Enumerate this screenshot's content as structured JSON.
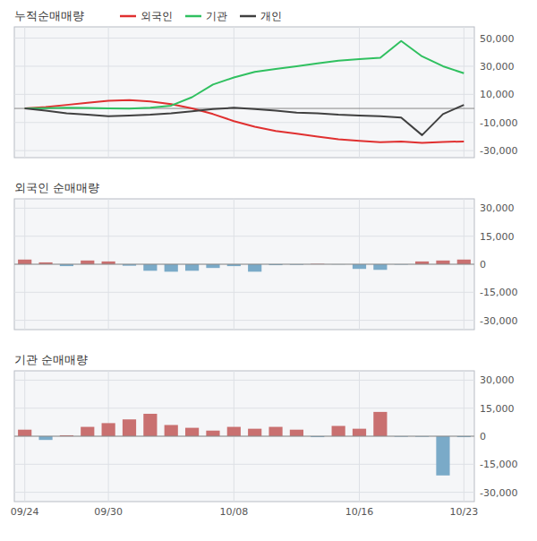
{
  "chart_data": [
    {
      "type": "line",
      "title": "누적순매매량",
      "categories": [
        "09/24",
        null,
        null,
        null,
        "09/30",
        null,
        null,
        null,
        null,
        null,
        "10/08",
        null,
        null,
        null,
        null,
        null,
        "10/16",
        null,
        null,
        null,
        null,
        "10/23"
      ],
      "series": [
        {
          "name": "외국인",
          "color": "#e03030",
          "values": [
            0,
            1000,
            2500,
            4000,
            5500,
            6000,
            5000,
            3000,
            0,
            -4000,
            -9000,
            -13000,
            -16000,
            -18000,
            -20000,
            -22000,
            -23000,
            -24000,
            -23500,
            -24500,
            -23800,
            -23500
          ]
        },
        {
          "name": "기관",
          "color": "#30c060",
          "values": [
            0,
            200,
            500,
            300,
            100,
            -200,
            500,
            2000,
            8000,
            17000,
            22000,
            26000,
            28000,
            30000,
            32000,
            34000,
            35000,
            36000,
            48000,
            37000,
            30000,
            25000
          ]
        },
        {
          "name": "개인",
          "color": "#404040",
          "values": [
            0,
            -1500,
            -3500,
            -4500,
            -5500,
            -5000,
            -4500,
            -3500,
            -2000,
            -500,
            500,
            -500,
            -1500,
            -3000,
            -3500,
            -4500,
            -5000,
            -5500,
            -6500,
            -19000,
            -4000,
            2500
          ]
        }
      ],
      "ylim": [
        -35000,
        58000
      ],
      "yticks": [
        {
          "value": -30000,
          "label": "-30,000"
        },
        {
          "value": -10000,
          "label": "-10,000"
        },
        {
          "value": 10000,
          "label": "10,000"
        },
        {
          "value": 30000,
          "label": "30,000"
        },
        {
          "value": 50000,
          "label": "50,000"
        }
      ],
      "grid": true,
      "legend": "top",
      "tick_labels": "y"
    },
    {
      "type": "bar",
      "title": "외국인 순매매량",
      "categories": [
        "09/24",
        null,
        null,
        null,
        "09/30",
        null,
        null,
        null,
        null,
        null,
        "10/08",
        null,
        null,
        null,
        null,
        null,
        "10/16",
        null,
        null,
        null,
        null,
        "10/23"
      ],
      "values": [
        2500,
        1000,
        -1000,
        2000,
        1500,
        -800,
        -3500,
        -4000,
        -3500,
        -2000,
        -1000,
        -4000,
        -500,
        -300,
        200,
        -100,
        -2500,
        -3000,
        -200,
        1500,
        2000,
        2500
      ],
      "colors": [
        "#c97070",
        "#c97070",
        "#7aaac8",
        "#c97070",
        "#c97070",
        "#7aaac8",
        "#7aaac8",
        "#7aaac8",
        "#7aaac8",
        "#7aaac8",
        "#7aaac8",
        "#7aaac8",
        "#7aaac8",
        "#7aaac8",
        "#c97070",
        "#7aaac8",
        "#7aaac8",
        "#7aaac8",
        "#7aaac8",
        "#c97070",
        "#c97070",
        "#c97070"
      ],
      "ylim": [
        -35000,
        35000
      ],
      "yticks": [
        {
          "value": -30000,
          "label": "-30,000"
        },
        {
          "value": -15000,
          "label": "-15,000"
        },
        0,
        {
          "value": 15000,
          "label": "15,000"
        },
        {
          "value": 30000,
          "label": "30,000"
        }
      ],
      "grid": true,
      "tick_labels": "y"
    },
    {
      "type": "bar",
      "title": "기관 순매매량",
      "categories": [
        "09/24",
        null,
        null,
        null,
        "09/30",
        null,
        null,
        null,
        null,
        null,
        "10/08",
        null,
        null,
        null,
        null,
        null,
        "10/16",
        null,
        null,
        null,
        null,
        "10/23"
      ],
      "values": [
        3500,
        -2000,
        500,
        5000,
        7000,
        9000,
        12000,
        6000,
        4500,
        3000,
        5000,
        4000,
        5000,
        3500,
        -500,
        5500,
        4000,
        13000,
        -300,
        -300,
        -21000,
        -500
      ],
      "colors": [
        "#c97070",
        "#7aaac8",
        "#c97070",
        "#c97070",
        "#c97070",
        "#c97070",
        "#c97070",
        "#c97070",
        "#c97070",
        "#c97070",
        "#c97070",
        "#c97070",
        "#c97070",
        "#c97070",
        "#7aaac8",
        "#c97070",
        "#c97070",
        "#c97070",
        "#7aaac8",
        "#7aaac8",
        "#7aaac8",
        "#7aaac8"
      ],
      "ylim": [
        -35000,
        35000
      ],
      "yticks": [
        {
          "value": -30000,
          "label": "-30,000"
        },
        {
          "value": -15000,
          "label": "-15,000"
        },
        0,
        {
          "value": 15000,
          "label": "15,000"
        },
        {
          "value": 30000,
          "label": "30,000"
        }
      ],
      "grid": true
    }
  ]
}
